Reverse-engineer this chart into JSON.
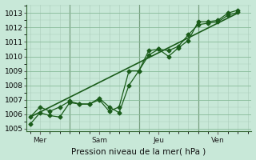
{
  "bg_color": "#c8e8d8",
  "plot_bg_color": "#c8e8d8",
  "grid_color_major": "#88bb99",
  "grid_color_minor": "#aaccbb",
  "line_color": "#1a5c1a",
  "marker_color": "#1a5c1a",
  "vline_color": "#336633",
  "xlabel": "Pression niveau de la mer( hPa )",
  "ylim": [
    1004.8,
    1013.6
  ],
  "yticks": [
    1005,
    1006,
    1007,
    1008,
    1009,
    1010,
    1011,
    1012,
    1013
  ],
  "day_labels": [
    "Mer",
    "Sam",
    "Jeu",
    "Ven"
  ],
  "day_positions": [
    0.5,
    3.5,
    6.5,
    9.5
  ],
  "vline_positions": [
    2.0,
    5.5,
    8.5
  ],
  "series1_x": [
    0.0,
    0.5,
    1.0,
    1.5,
    2.0,
    2.5,
    3.0,
    3.5,
    4.0,
    4.5,
    5.0,
    5.5,
    6.0,
    6.5,
    7.0,
    7.5,
    8.0,
    8.5,
    9.0,
    9.5,
    10.0,
    10.5
  ],
  "series1_y": [
    1005.3,
    1006.1,
    1005.9,
    1005.8,
    1006.8,
    1006.7,
    1006.7,
    1007.1,
    1006.5,
    1006.1,
    1008.0,
    1009.0,
    1010.4,
    1010.5,
    1010.0,
    1010.6,
    1011.1,
    1012.4,
    1012.4,
    1012.5,
    1013.0,
    1013.2
  ],
  "series2_x": [
    0.0,
    0.5,
    1.0,
    1.5,
    2.0,
    2.5,
    3.0,
    3.5,
    4.0,
    4.5,
    5.0,
    5.5,
    6.0,
    6.5,
    7.0,
    7.5,
    8.0,
    8.5,
    9.0,
    9.5,
    10.0,
    10.5
  ],
  "series2_y": [
    1005.8,
    1006.5,
    1006.2,
    1006.5,
    1006.9,
    1006.7,
    1006.7,
    1007.0,
    1006.2,
    1006.5,
    1009.0,
    1009.0,
    1010.1,
    1010.5,
    1010.4,
    1010.7,
    1011.5,
    1012.2,
    1012.3,
    1012.4,
    1012.85,
    1013.05
  ],
  "series3_x": [
    0.0,
    10.5
  ],
  "series3_y": [
    1005.8,
    1013.0
  ],
  "xlim": [
    -0.2,
    11.2
  ]
}
